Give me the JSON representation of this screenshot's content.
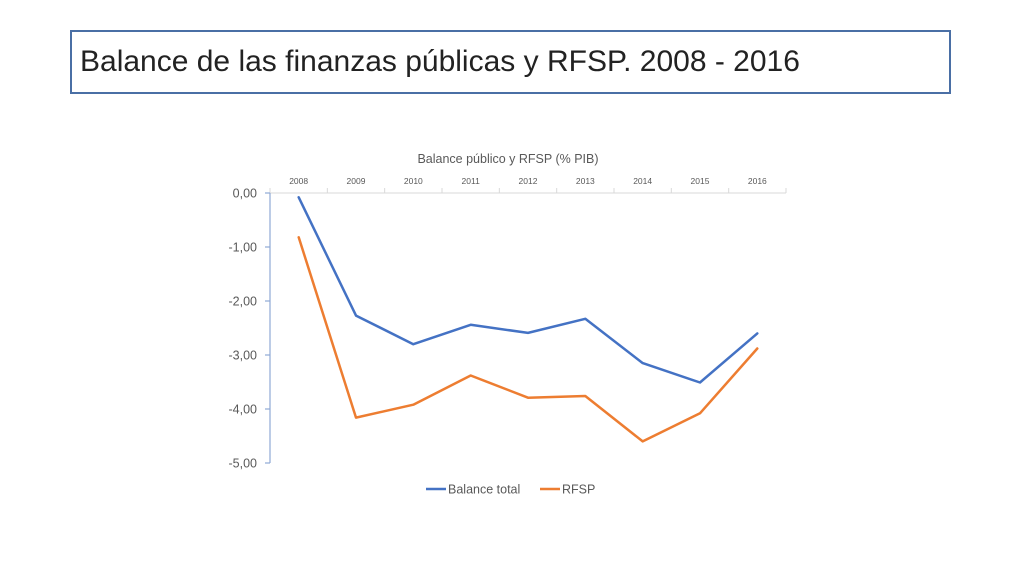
{
  "slide": {
    "title": "Balance de las finanzas públicas y RFSP. 2008 - 2016"
  },
  "chart_data": {
    "type": "line",
    "title": "Balance  público y RFSP (% PIB)",
    "xlabel": "",
    "ylabel": "",
    "x_axis_position": "top",
    "categories": [
      "2008",
      "2009",
      "2010",
      "2011",
      "2012",
      "2013",
      "2014",
      "2015",
      "2016"
    ],
    "y_ticks": [
      "0,00",
      "-1,00",
      "-2,00",
      "-3,00",
      "-4,00",
      "-5,00"
    ],
    "ylim": [
      -5,
      0
    ],
    "grid": false,
    "legend_position": "bottom",
    "series": [
      {
        "name": "Balance total",
        "color": "#4472c4",
        "values": [
          -0.08,
          -2.27,
          -2.8,
          -2.44,
          -2.59,
          -2.33,
          -3.15,
          -3.51,
          -2.6
        ]
      },
      {
        "name": "RFSP",
        "color": "#ed7d31",
        "values": [
          -0.82,
          -4.16,
          -3.92,
          -3.38,
          -3.79,
          -3.76,
          -4.6,
          -4.08,
          -2.88
        ]
      }
    ]
  }
}
